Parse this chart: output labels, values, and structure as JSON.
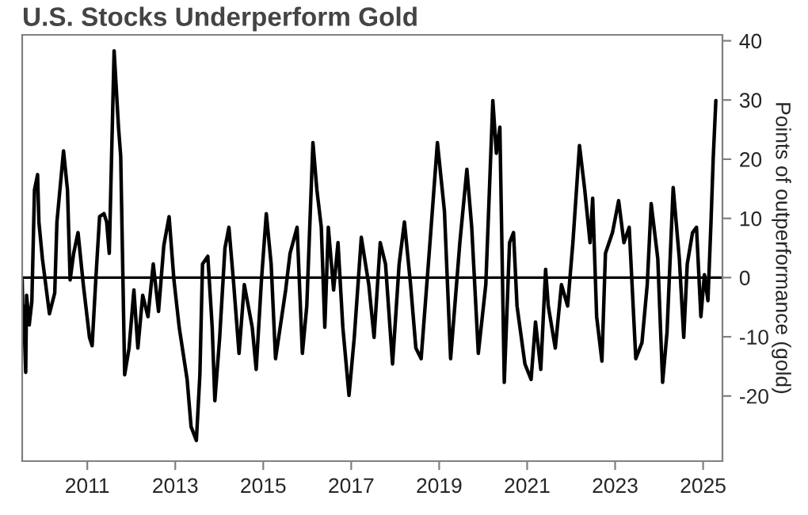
{
  "chart_data": {
    "type": "line",
    "title": "U.S. Stocks Underperform Gold",
    "ylabel": "Points of outperformance (gold)",
    "x": [
      2009.52,
      2009.54,
      2009.55,
      2009.6,
      2009.62,
      2009.68,
      2009.74,
      2009.8,
      2009.87,
      2009.9,
      2009.98,
      2010.14,
      2010.26,
      2010.31,
      2010.46,
      2010.55,
      2010.61,
      2010.69,
      2010.79,
      2010.91,
      2011.05,
      2011.11,
      2011.2,
      2011.28,
      2011.38,
      2011.44,
      2011.5,
      2011.61,
      2011.71,
      2011.76,
      2011.85,
      2011.95,
      2012.06,
      2012.15,
      2012.26,
      2012.38,
      2012.5,
      2012.62,
      2012.74,
      2012.86,
      2012.97,
      2013.09,
      2013.27,
      2013.36,
      2013.48,
      2013.56,
      2013.62,
      2013.74,
      2013.84,
      2013.9,
      2014.01,
      2014.13,
      2014.22,
      2014.33,
      2014.45,
      2014.57,
      2014.75,
      2014.84,
      2014.96,
      2015.07,
      2015.18,
      2015.28,
      2015.51,
      2015.61,
      2015.77,
      2015.89,
      2015.99,
      2016.13,
      2016.22,
      2016.32,
      2016.4,
      2016.48,
      2016.6,
      2016.7,
      2016.81,
      2016.95,
      2017.07,
      2017.23,
      2017.4,
      2017.52,
      2017.66,
      2017.78,
      2017.94,
      2018.09,
      2018.21,
      2018.35,
      2018.47,
      2018.59,
      2018.8,
      2018.96,
      2019.12,
      2019.26,
      2019.47,
      2019.63,
      2019.74,
      2019.89,
      2020.06,
      2020.22,
      2020.3,
      2020.38,
      2020.48,
      2020.6,
      2020.69,
      2020.77,
      2020.95,
      2021.09,
      2021.19,
      2021.31,
      2021.42,
      2021.48,
      2021.64,
      2021.78,
      2021.92,
      2022.04,
      2022.19,
      2022.31,
      2022.43,
      2022.49,
      2022.58,
      2022.7,
      2022.78,
      2022.94,
      2023.08,
      2023.2,
      2023.32,
      2023.47,
      2023.61,
      2023.73,
      2023.82,
      2023.97,
      2024.08,
      2024.18,
      2024.32,
      2024.46,
      2024.56,
      2024.64,
      2024.76,
      2024.85,
      2024.95,
      2025.03,
      2025.11,
      2025.18,
      2025.23,
      2025.29
    ],
    "series": [
      {
        "color": "#000000",
        "values": [
          -0.4,
          -8.4,
          -4.8,
          -16,
          -3,
          -8,
          -4,
          14.8,
          17.4,
          9.4,
          3.2,
          -6.1,
          -2.6,
          9.4,
          21.4,
          14.8,
          -0.4,
          4.1,
          7.6,
          -1.2,
          -10.1,
          -11.5,
          0.5,
          10.3,
          10.8,
          9.4,
          4.1,
          38.3,
          25.4,
          20.5,
          -16.4,
          -11.9,
          -2.1,
          -11.9,
          -3,
          -6.6,
          2.3,
          -5.7,
          5.4,
          10.3,
          -0.4,
          -8.4,
          -17.2,
          -25.2,
          -27.5,
          -16.4,
          2.3,
          3.6,
          -8.4,
          -20.8,
          -10.1,
          5,
          8.5,
          -1.2,
          -12.8,
          -1.2,
          -8.4,
          -15.5,
          -0.4,
          10.8,
          2.3,
          -13.7,
          -2.1,
          4.1,
          8.5,
          -12.8,
          -4.8,
          22.8,
          14.8,
          8.5,
          -8.4,
          8.5,
          -2.1,
          5.9,
          -8.4,
          -19.9,
          -10.1,
          6.8,
          -1.2,
          -10.1,
          5.9,
          2.3,
          -14.6,
          2.3,
          9.4,
          -1.2,
          -11.9,
          -13.7,
          6.8,
          22.8,
          11.2,
          -13.7,
          5.9,
          18.3,
          8.5,
          -12.8,
          -1.2,
          29.9,
          21,
          25.4,
          -17.7,
          5.9,
          7.6,
          -4.8,
          -14.6,
          -17.2,
          -7.5,
          -15.5,
          1.4,
          -4.8,
          -11.9,
          -1.2,
          -4.8,
          5.9,
          22.3,
          14.8,
          5.9,
          13.4,
          -6.6,
          -14.1,
          4.1,
          7.6,
          13,
          5.9,
          8.5,
          -13.7,
          -11,
          -1.2,
          12.5,
          3.2,
          -17.7,
          -9.2,
          15.2,
          3.2,
          -10.1,
          2.3,
          7.6,
          8.5,
          -6.6,
          0.5,
          -3.9,
          9.4,
          20.1,
          29.9
        ]
      }
    ],
    "xlim": [
      2009.52,
      2025.44
    ],
    "xticks": [
      2011,
      2013,
      2015,
      2017,
      2019,
      2021,
      2023,
      2025
    ],
    "ylim": [
      -31,
      41
    ],
    "yticks": [
      -20,
      -10,
      0,
      10,
      20,
      30,
      40
    ],
    "ref_lines": [
      {
        "axis": "y",
        "value": 0,
        "color": "#000000"
      }
    ],
    "grid": false,
    "legend": false
  }
}
